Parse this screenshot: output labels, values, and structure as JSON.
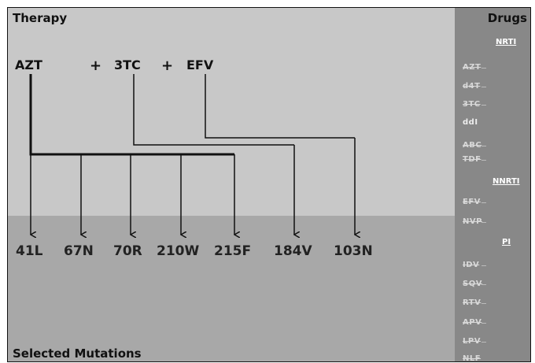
{
  "therapy": {
    "title": "Therapy",
    "drugs": [
      "AZT",
      "3TC",
      "EFV"
    ],
    "plus": "+"
  },
  "selected": {
    "title": "Selected Mutations",
    "mutations": [
      "41L",
      "67N",
      "70R",
      "210W",
      "215F",
      "184V",
      "103N"
    ]
  },
  "sidebar": {
    "title": "Drugs",
    "categories": [
      {
        "name": "NRTI",
        "drugs": [
          {
            "label": "AZT",
            "dim": true
          },
          {
            "label": "d4T",
            "dim": true
          },
          {
            "label": "3TC",
            "dim": true
          },
          {
            "label": "ddI",
            "dim": false
          },
          {
            "label": "ABC",
            "dim": true
          },
          {
            "label": "TDF",
            "dim": true
          }
        ]
      },
      {
        "name": "NNRTI",
        "drugs": [
          {
            "label": "EFV",
            "dim": true
          },
          {
            "label": "NVP",
            "dim": true
          }
        ]
      },
      {
        "name": "PI",
        "drugs": [
          {
            "label": "IDV",
            "dim": true
          },
          {
            "label": "SQV",
            "dim": true
          },
          {
            "label": "RTV",
            "dim": true
          },
          {
            "label": "APV",
            "dim": true
          },
          {
            "label": "LPV",
            "dim": true
          },
          {
            "label": "NLF",
            "dim": true
          }
        ]
      }
    ]
  },
  "colors": {
    "top_panel": "#c8c8c8",
    "bottom_panel": "#a8a8a8",
    "sidebar": "#888888",
    "lines": "#111111"
  }
}
